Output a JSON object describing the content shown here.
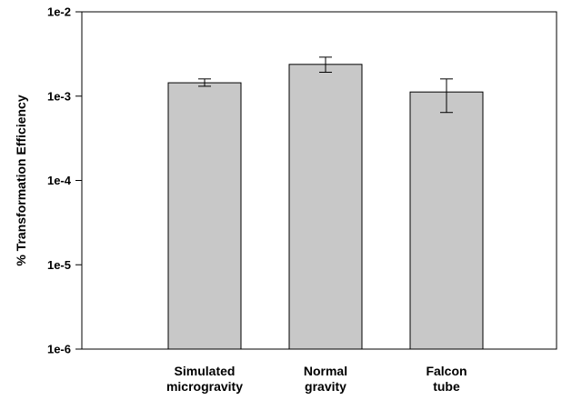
{
  "chart_data": {
    "type": "bar",
    "title": "",
    "xlabel": "",
    "ylabel": "% Transformation Efficiency",
    "yscale": "log",
    "ylim": [
      1e-06,
      0.01
    ],
    "yticks": [
      {
        "value": 1e-06,
        "label": "1e-6"
      },
      {
        "value": 1e-05,
        "label": "1e-5"
      },
      {
        "value": 0.0001,
        "label": "1e-4"
      },
      {
        "value": 0.001,
        "label": "1e-3"
      },
      {
        "value": 0.01,
        "label": "1e-2"
      }
    ],
    "categories": [
      {
        "lines": [
          "Simulated",
          "microgravity"
        ]
      },
      {
        "lines": [
          "Normal",
          "gravity"
        ]
      },
      {
        "lines": [
          "Falcon",
          "tube"
        ]
      }
    ],
    "values": [
      0.00144,
      0.00238,
      0.00112
    ],
    "error_low": [
      0.00131,
      0.00192,
      0.00064
    ],
    "error_high": [
      0.0016,
      0.0029,
      0.0016
    ],
    "grid": false,
    "legend": "none",
    "colors": {
      "bar_fill": "#c8c8c8",
      "bar_stroke": "#000000",
      "axis": "#000000"
    }
  }
}
